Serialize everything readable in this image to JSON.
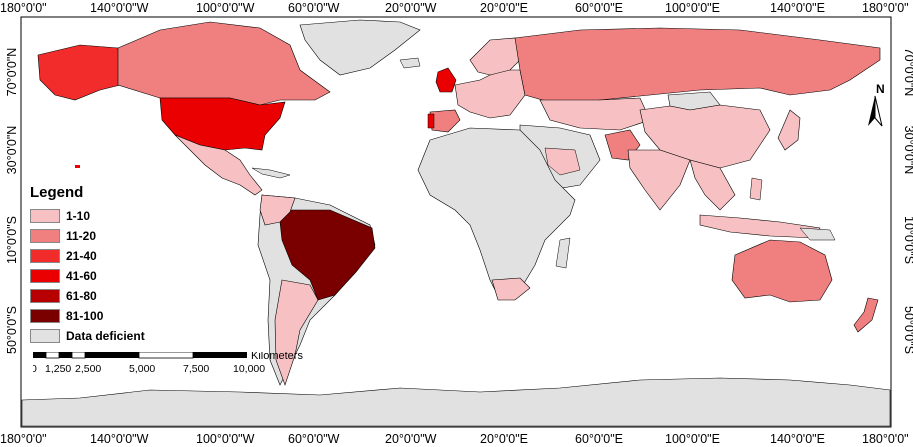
{
  "top_axis": [
    "180°0'0\"",
    "140°0'0\"W",
    "100°0'0\"W",
    "60°0'0\"W",
    "20°0'0\"W",
    "20°0'0\"E",
    "60°0'0\"E",
    "100°0'0\"E",
    "140°0'0\"E",
    "180°0'0\""
  ],
  "bottom_axis": [
    "180°0'0\"",
    "140°0'0\"W",
    "100°0'0\"W",
    "60°0'0\"W",
    "20°0'0\"W",
    "20°0'0\"E",
    "60°0'0\"E",
    "100°0'0\"E",
    "140°0'0\"E",
    "180°0'0\""
  ],
  "left_axis": [
    "70°0'0\"N",
    "30°0'0\"N",
    "10°0'0\"S",
    "50°0'0\"S"
  ],
  "right_axis": [
    "70°0'0\"N",
    "30°0'0\"N",
    "10°0'0\"S",
    "50°0'0\"S"
  ],
  "legend": {
    "title": "Legend",
    "items": [
      {
        "label": "1-10",
        "color": "#f7c0c2"
      },
      {
        "label": "11-20",
        "color": "#f08080"
      },
      {
        "label": "21-40",
        "color": "#f22b2b"
      },
      {
        "label": "41-60",
        "color": "#ea0000"
      },
      {
        "label": "61-80",
        "color": "#b80000"
      },
      {
        "label": "81-100",
        "color": "#7a0000"
      },
      {
        "label": "Data deficient",
        "color": "#e1e1e1"
      }
    ]
  },
  "scale": {
    "unit": "Kilometers",
    "labels": [
      "0",
      "1,250",
      "2,500",
      "5,000",
      "7,500",
      "10,000"
    ]
  },
  "north_arrow": {
    "label": "N"
  },
  "colors": {
    "ocean": "#ffffff",
    "land_default": "#e1e1e1",
    "border": "#000000"
  }
}
